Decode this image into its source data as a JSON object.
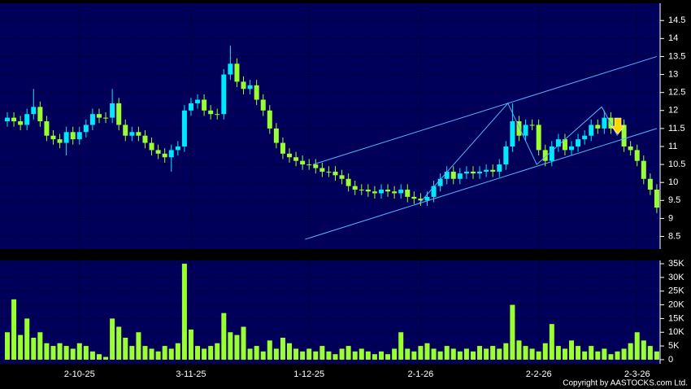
{
  "chart_data": {
    "type": "candlestick",
    "categories": [
      null,
      null,
      null,
      null,
      null,
      null,
      null,
      null,
      null,
      null,
      null,
      "2-10-25",
      null,
      null,
      null,
      null,
      null,
      null,
      null,
      null,
      null,
      null,
      null,
      null,
      null,
      null,
      null,
      null,
      "3-11-25",
      null,
      null,
      null,
      null,
      null,
      null,
      null,
      null,
      null,
      null,
      null,
      null,
      null,
      null,
      null,
      null,
      null,
      "1-12-25",
      null,
      null,
      null,
      null,
      null,
      null,
      null,
      null,
      null,
      null,
      null,
      null,
      null,
      null,
      null,
      null,
      "2-1-26",
      null,
      null,
      null,
      null,
      null,
      null,
      null,
      null,
      null,
      null,
      null,
      null,
      null,
      null,
      null,
      null,
      null,
      "2-2-26",
      null,
      null,
      null,
      null,
      null,
      null,
      null,
      null,
      null,
      null,
      null,
      null,
      null,
      null,
      "2-3-26",
      null,
      null,
      null
    ],
    "open": [
      11.7,
      11.8,
      11.7,
      11.6,
      11.9,
      12.1,
      11.7,
      11.3,
      11.2,
      11.1,
      11.4,
      11.2,
      11.4,
      11.6,
      11.9,
      11.8,
      11.8,
      12.2,
      11.6,
      11.3,
      11.4,
      11.3,
      11.1,
      10.9,
      10.8,
      10.7,
      10.9,
      11.0,
      12.0,
      12.2,
      12.3,
      12.0,
      11.9,
      11.9,
      13.0,
      13.3,
      12.8,
      12.6,
      12.7,
      12.3,
      12.0,
      11.5,
      11.1,
      10.8,
      10.7,
      10.6,
      10.5,
      10.5,
      10.4,
      10.3,
      10.3,
      10.2,
      10.1,
      9.9,
      9.8,
      9.8,
      9.75,
      9.7,
      9.8,
      9.75,
      9.7,
      9.8,
      9.6,
      9.55,
      9.5,
      9.6,
      9.9,
      10.1,
      10.3,
      10.1,
      10.25,
      10.3,
      10.25,
      10.3,
      10.35,
      10.3,
      10.5,
      11.0,
      11.7,
      11.3,
      11.6,
      11.6,
      10.9,
      10.6,
      11.0,
      11.2,
      10.9,
      11.0,
      11.2,
      11.3,
      11.6,
      11.5,
      11.8,
      11.5,
      11.6,
      11.0,
      10.9,
      10.6,
      10.1,
      9.8
    ],
    "high": [
      11.95,
      11.95,
      11.85,
      12.05,
      12.6,
      12.25,
      11.85,
      11.45,
      11.35,
      11.55,
      11.55,
      11.55,
      11.75,
      12.05,
      12.05,
      11.95,
      12.6,
      12.35,
      11.75,
      11.55,
      11.55,
      11.45,
      11.25,
      11.05,
      10.95,
      11.05,
      11.15,
      12.15,
      12.35,
      12.45,
      12.45,
      12.15,
      12.05,
      13.15,
      13.8,
      13.45,
      12.95,
      12.85,
      12.85,
      12.45,
      12.15,
      11.65,
      11.25,
      10.95,
      10.85,
      10.75,
      10.65,
      10.65,
      10.55,
      10.45,
      10.45,
      10.35,
      10.25,
      10.05,
      9.95,
      9.95,
      9.9,
      9.95,
      9.95,
      9.9,
      9.95,
      9.95,
      9.75,
      9.7,
      9.75,
      10.05,
      10.25,
      10.45,
      10.45,
      10.4,
      10.45,
      10.45,
      10.45,
      10.5,
      10.5,
      10.65,
      11.15,
      12.2,
      11.85,
      11.75,
      11.75,
      11.75,
      11.05,
      11.15,
      11.35,
      11.35,
      11.15,
      11.35,
      11.45,
      11.75,
      11.75,
      12.0,
      11.95,
      11.75,
      11.75,
      11.15,
      11.05,
      10.75,
      10.25,
      9.95
    ],
    "low": [
      11.55,
      11.55,
      11.45,
      11.45,
      11.75,
      11.55,
      11.15,
      11.05,
      10.95,
      10.75,
      11.05,
      11.05,
      11.25,
      11.45,
      11.65,
      11.65,
      11.65,
      11.45,
      11.15,
      11.15,
      11.15,
      10.95,
      10.75,
      10.65,
      10.55,
      10.3,
      10.75,
      10.85,
      11.85,
      12.05,
      11.85,
      11.75,
      11.75,
      11.75,
      12.85,
      12.65,
      12.45,
      12.45,
      12.15,
      11.85,
      11.35,
      10.95,
      10.65,
      10.55,
      10.45,
      10.35,
      10.35,
      10.25,
      10.15,
      10.15,
      10.05,
      9.95,
      9.75,
      9.65,
      9.65,
      9.6,
      9.55,
      9.55,
      9.6,
      9.55,
      9.55,
      9.45,
      9.4,
      9.35,
      9.35,
      9.45,
      9.75,
      9.95,
      9.95,
      9.95,
      10.1,
      10.1,
      10.1,
      10.15,
      10.15,
      10.15,
      10.35,
      10.85,
      11.15,
      11.15,
      11.45,
      10.75,
      10.45,
      10.45,
      10.85,
      10.75,
      10.75,
      10.85,
      11.05,
      11.15,
      11.35,
      11.35,
      11.35,
      11.45,
      10.85,
      10.75,
      10.45,
      9.95,
      9.65,
      9.15
    ],
    "close": [
      11.8,
      11.7,
      11.6,
      11.9,
      12.1,
      11.7,
      11.3,
      11.2,
      11.1,
      11.4,
      11.2,
      11.4,
      11.6,
      11.9,
      11.8,
      11.8,
      12.2,
      11.6,
      11.3,
      11.4,
      11.3,
      11.1,
      10.9,
      10.8,
      10.7,
      10.9,
      11.0,
      12.0,
      12.2,
      12.3,
      12.0,
      11.9,
      11.9,
      13.0,
      13.3,
      12.8,
      12.6,
      12.7,
      12.3,
      12.0,
      11.5,
      11.1,
      10.8,
      10.7,
      10.6,
      10.5,
      10.5,
      10.4,
      10.3,
      10.3,
      10.2,
      10.1,
      9.9,
      9.8,
      9.8,
      9.75,
      9.7,
      9.8,
      9.75,
      9.7,
      9.8,
      9.6,
      9.55,
      9.5,
      9.6,
      9.9,
      10.1,
      10.3,
      10.1,
      10.25,
      10.3,
      10.25,
      10.3,
      10.35,
      10.3,
      10.5,
      11.0,
      11.7,
      11.3,
      11.6,
      11.6,
      10.9,
      10.6,
      11.0,
      11.2,
      10.9,
      11.0,
      11.2,
      11.3,
      11.6,
      11.5,
      11.8,
      11.5,
      11.6,
      11.0,
      10.9,
      10.6,
      10.1,
      9.8,
      9.3
    ],
    "up_color": "#00e8ff",
    "down_color": "#99ff33",
    "ylim": [
      8.15,
      14.98
    ],
    "yticks": [
      8.5,
      9,
      9.5,
      10,
      10.5,
      11,
      11.5,
      12,
      12.5,
      13,
      13.5,
      14,
      14.5
    ],
    "grid": true,
    "trendlines": [
      {
        "color": "#4fb8ff",
        "x": [
          45.4,
          99
        ],
        "y": [
          8.42,
          11.5
        ]
      },
      {
        "color": "#4fb8ff",
        "x": [
          46.6,
          99
        ],
        "y": [
          10.5,
          13.5
        ]
      },
      {
        "color": "#4fb8ff",
        "x": [
          62.7,
          76.3,
          80.7,
          90.6,
          93
        ],
        "y": [
          9.4,
          12.2,
          10.5,
          12.1,
          11.3
        ]
      }
    ],
    "volume": {
      "color": "#99ff33",
      "values": [
        10000,
        22000,
        9000,
        15000,
        8000,
        10000,
        6000,
        5000,
        6000,
        5000,
        4000,
        6000,
        5000,
        3000,
        2000,
        1000,
        15000,
        12000,
        8000,
        5000,
        10000,
        5000,
        4000,
        3000,
        5000,
        4000,
        6000,
        35000,
        11000,
        5000,
        4000,
        5000,
        6000,
        17000,
        10000,
        9000,
        12000,
        4000,
        5000,
        3000,
        7000,
        4000,
        8000,
        6000,
        4000,
        3000,
        4000,
        3000,
        5000,
        3000,
        2000,
        4000,
        5000,
        3000,
        4000,
        3000,
        2000,
        3000,
        2000,
        4000,
        10000,
        4000,
        3000,
        5000,
        6000,
        4000,
        3000,
        5000,
        4000,
        3000,
        4000,
        3000,
        5000,
        4000,
        5000,
        4000,
        6000,
        20000,
        7000,
        5000,
        4000,
        3000,
        6000,
        13000,
        5000,
        4000,
        7000,
        5000,
        3000,
        5000,
        3000,
        4000,
        2000,
        3000,
        4000,
        6000,
        10000,
        7000,
        5000,
        3000
      ],
      "ylim": [
        -1500,
        36200
      ],
      "yticks": [
        0,
        {
          "value": 5000,
          "label": "5K"
        },
        {
          "value": 10000,
          "label": "10K"
        },
        {
          "value": 15000,
          "label": "15K"
        },
        {
          "value": 20000,
          "label": "20K"
        },
        {
          "value": 25000,
          "label": "25K"
        },
        {
          "value": 30000,
          "label": "30K"
        },
        {
          "value": 35000,
          "label": "35K"
        }
      ]
    },
    "copyright": "Copyright by AASTOCKS.com Ltd."
  }
}
